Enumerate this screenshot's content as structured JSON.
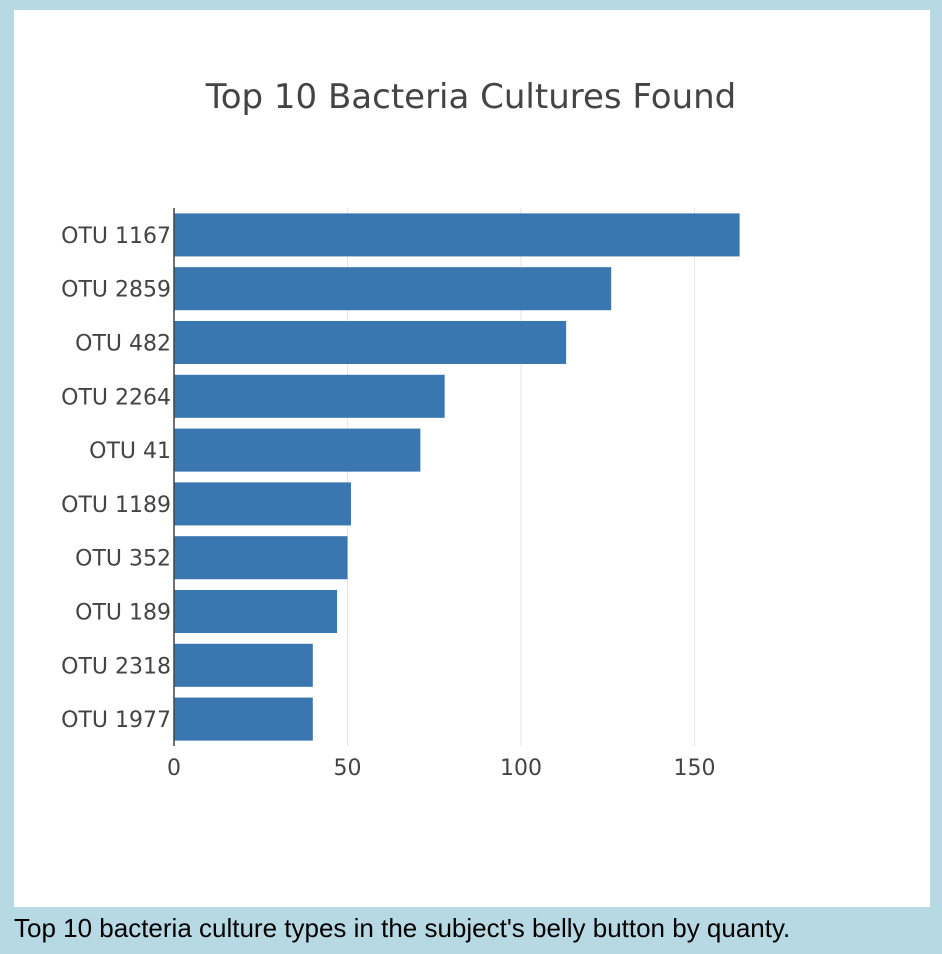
{
  "caption": "Top 10 bacteria culture types in the subject's belly button by quanty.",
  "colors": {
    "bar": "#3a76af",
    "grid": "#e6e6e6",
    "axis": "#444444",
    "text": "#444444",
    "frame": "#b7d9e4"
  },
  "chart_data": {
    "type": "bar",
    "orientation": "horizontal",
    "title": "Top 10 Bacteria Cultures Found",
    "xlabel": "",
    "ylabel": "",
    "categories": [
      "OTU 1167",
      "OTU 2859",
      "OTU 482",
      "OTU 2264",
      "OTU 41",
      "OTU 1189",
      "OTU 352",
      "OTU 189",
      "OTU 2318",
      "OTU 1977"
    ],
    "values": [
      163,
      126,
      113,
      78,
      71,
      51,
      50,
      47,
      40,
      40
    ],
    "xlim": [
      0,
      169
    ],
    "xticks": [
      0,
      50,
      100,
      150
    ],
    "xtick_labels": [
      "0",
      "50",
      "100",
      "150"
    ],
    "grid": true,
    "legend": "none"
  }
}
